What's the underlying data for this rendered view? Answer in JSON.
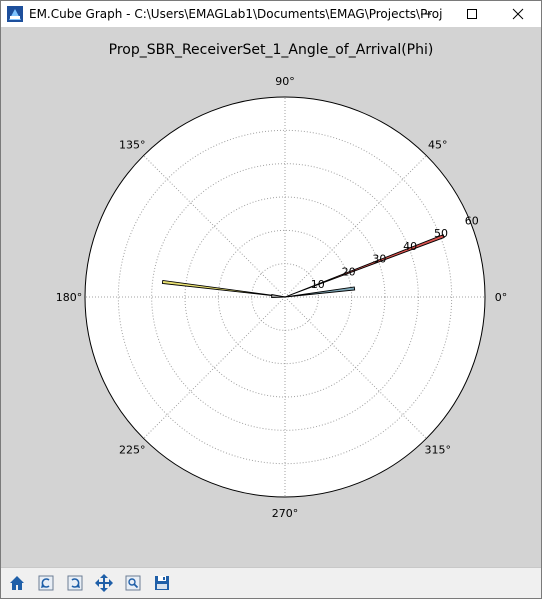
{
  "window": {
    "title": "EM.Cube Graph - C:\\Users\\EMAGLab1\\Documents\\EMAG\\Projects\\Proj",
    "controls": {
      "minimize": "minimize-icon",
      "maximize": "maximize-icon",
      "close": "close-icon"
    }
  },
  "plot": {
    "title": "Prop_SBR_ReceiverSet_1_Angle_of_Arrival(Phi)"
  },
  "chart_data": {
    "type": "polar",
    "title": "Prop_SBR_ReceiverSet_1_Angle_of_Arrival(Phi)",
    "angle_ticks": [
      "0°",
      "45°",
      "90°",
      "135°",
      "180°",
      "225°",
      "270°",
      "315°"
    ],
    "radial_ticks": [
      "10",
      "20",
      "30",
      "40",
      "50",
      "60"
    ],
    "r_max": 60,
    "grid": true,
    "series": [
      {
        "angle_deg": 21,
        "r": 51,
        "color": "#d9534f"
      },
      {
        "angle_deg": 173,
        "r": 37,
        "color": "#e8e070"
      },
      {
        "angle_deg": 7,
        "r": 21,
        "color": "#7fa8b8"
      },
      {
        "angle_deg": 176,
        "r": 4,
        "color": "#a0a0a0"
      }
    ]
  },
  "toolbar": {
    "tools": [
      {
        "name": "home-icon"
      },
      {
        "name": "back-icon"
      },
      {
        "name": "forward-icon"
      },
      {
        "name": "pan-icon"
      },
      {
        "name": "zoom-icon"
      },
      {
        "name": "save-icon"
      }
    ]
  }
}
